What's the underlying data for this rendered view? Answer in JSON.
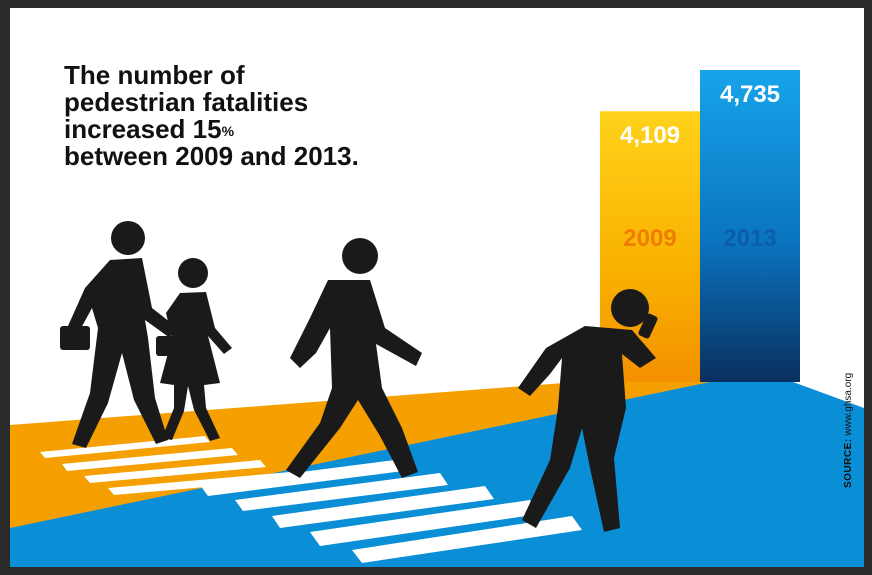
{
  "headline": {
    "line1": "The number of",
    "line2": "pedestrian fatalities",
    "line3_prefix": "increased 15",
    "line3_sup": "%",
    "line4": "between 2009 and 2013."
  },
  "chart_data": {
    "type": "bar",
    "categories": [
      "2009",
      "2013"
    ],
    "values": [
      4109,
      4735
    ],
    "value_labels": [
      "4,109",
      "4,735"
    ],
    "colors": [
      "#f7a800",
      "#0a8fd6"
    ],
    "year_label_colors": [
      "#f07d00",
      "#0b5da8"
    ],
    "title": "The number of pedestrian fatalities increased 15% between 2009 and 2013.",
    "xlabel": "",
    "ylabel": "",
    "ylim": [
      0,
      4735
    ],
    "grid": false,
    "legend": "none"
  },
  "source": {
    "label": "SOURCE:",
    "text": "www.ghsa.org"
  },
  "illustration": {
    "figures": [
      "pedestrian-silhouette",
      "pedestrian-silhouette",
      "pedestrian-silhouette",
      "pedestrian-silhouette"
    ],
    "road_color": "#0a8fd6",
    "sidewalk_color": "#f5a000"
  }
}
